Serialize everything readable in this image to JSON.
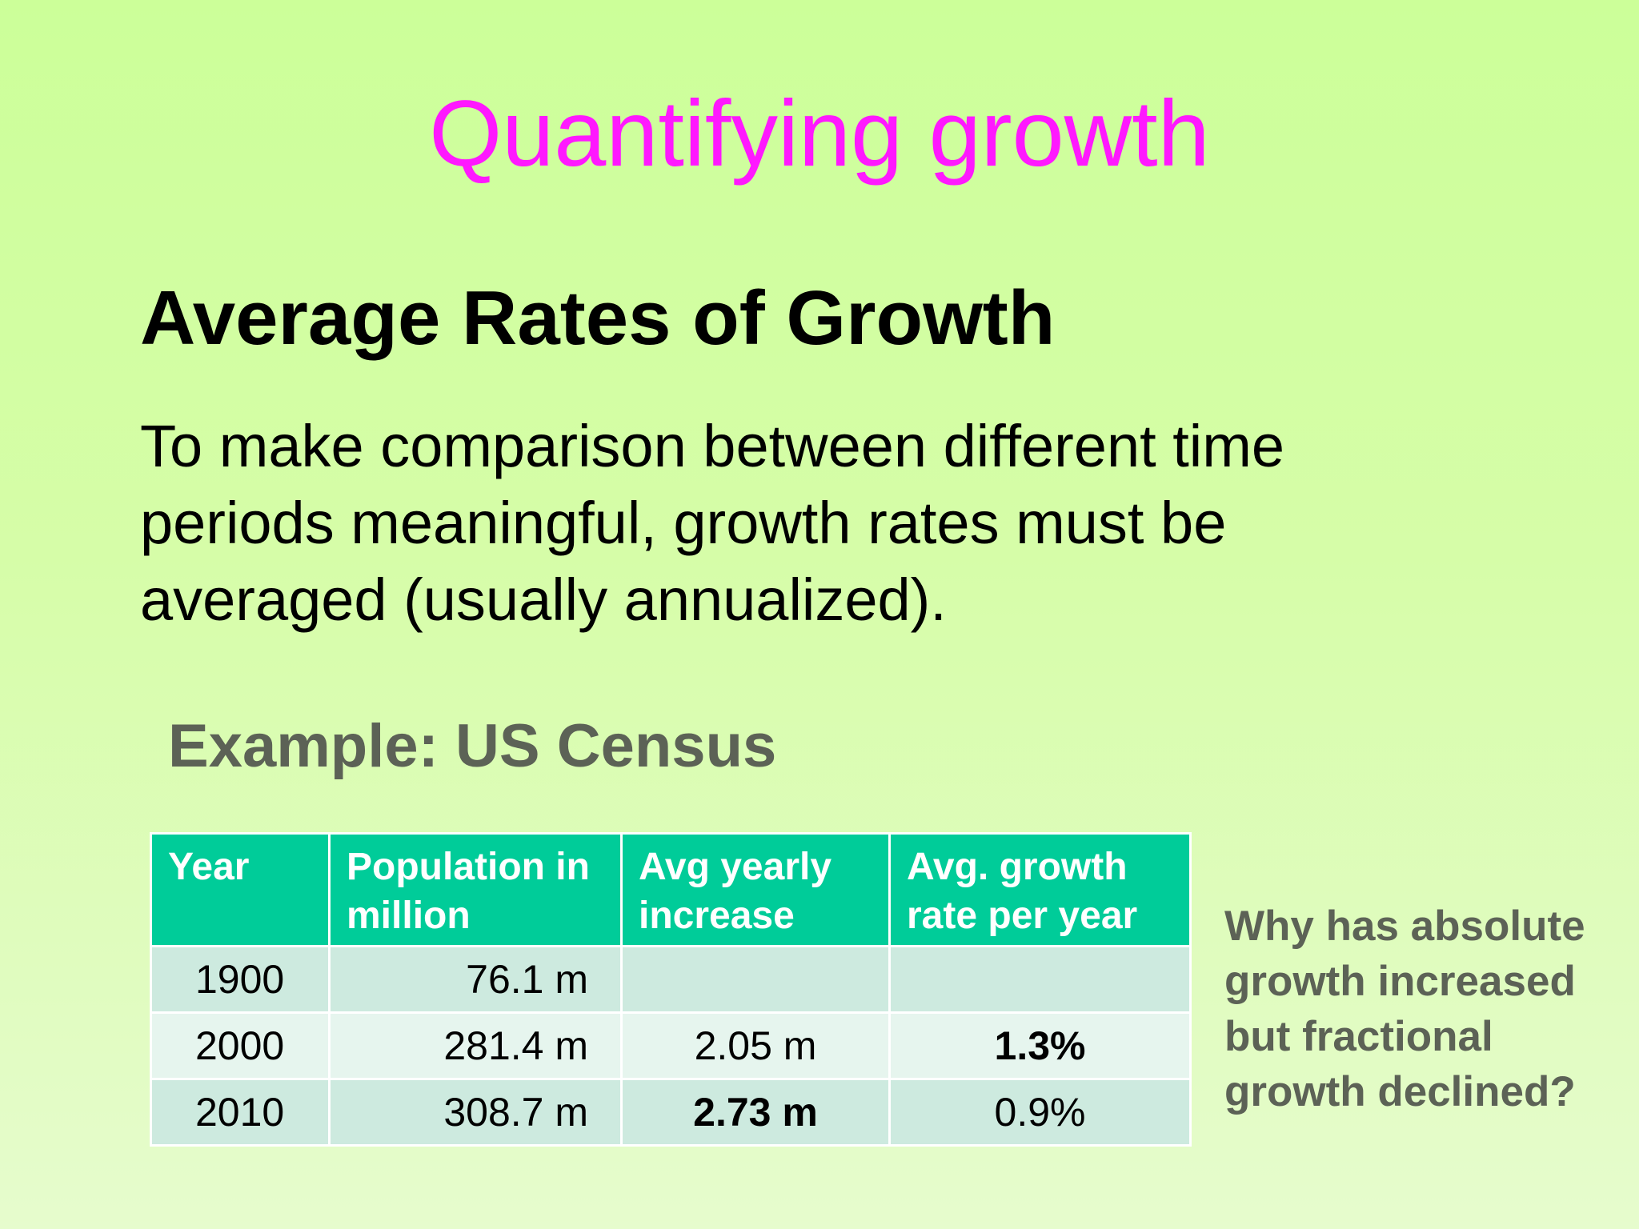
{
  "slide": {
    "title": "Quantifying growth",
    "heading": "Average Rates of Growth",
    "body_lines": [
      "To make comparison between different time",
      "periods meaningful, growth rates must be",
      "averaged (usually annualized)."
    ],
    "example_heading": "Example: US Census",
    "question_lines": [
      "Why has absolute",
      "growth increased",
      "but fractional",
      "growth declined?"
    ]
  },
  "colors": {
    "title": "#ff18ff",
    "header_fill": "#00cc99",
    "row_dark": "#cdeadf",
    "row_light": "#e6f5ee",
    "muted_text": "#5c6256"
  },
  "table": {
    "headers": [
      [
        "Year"
      ],
      [
        "Population in",
        "million"
      ],
      [
        "Avg yearly",
        "increase"
      ],
      [
        "Avg. growth",
        "rate per year"
      ]
    ],
    "rows": [
      {
        "year": "1900",
        "population": "76.1 m",
        "increase": "",
        "rate": ""
      },
      {
        "year": "2000",
        "population": "281.4 m",
        "increase": "2.05 m",
        "rate": "1.3%"
      },
      {
        "year": "2010",
        "population": "308.7 m",
        "increase": "2.73 m",
        "rate": "0.9%"
      }
    ]
  }
}
